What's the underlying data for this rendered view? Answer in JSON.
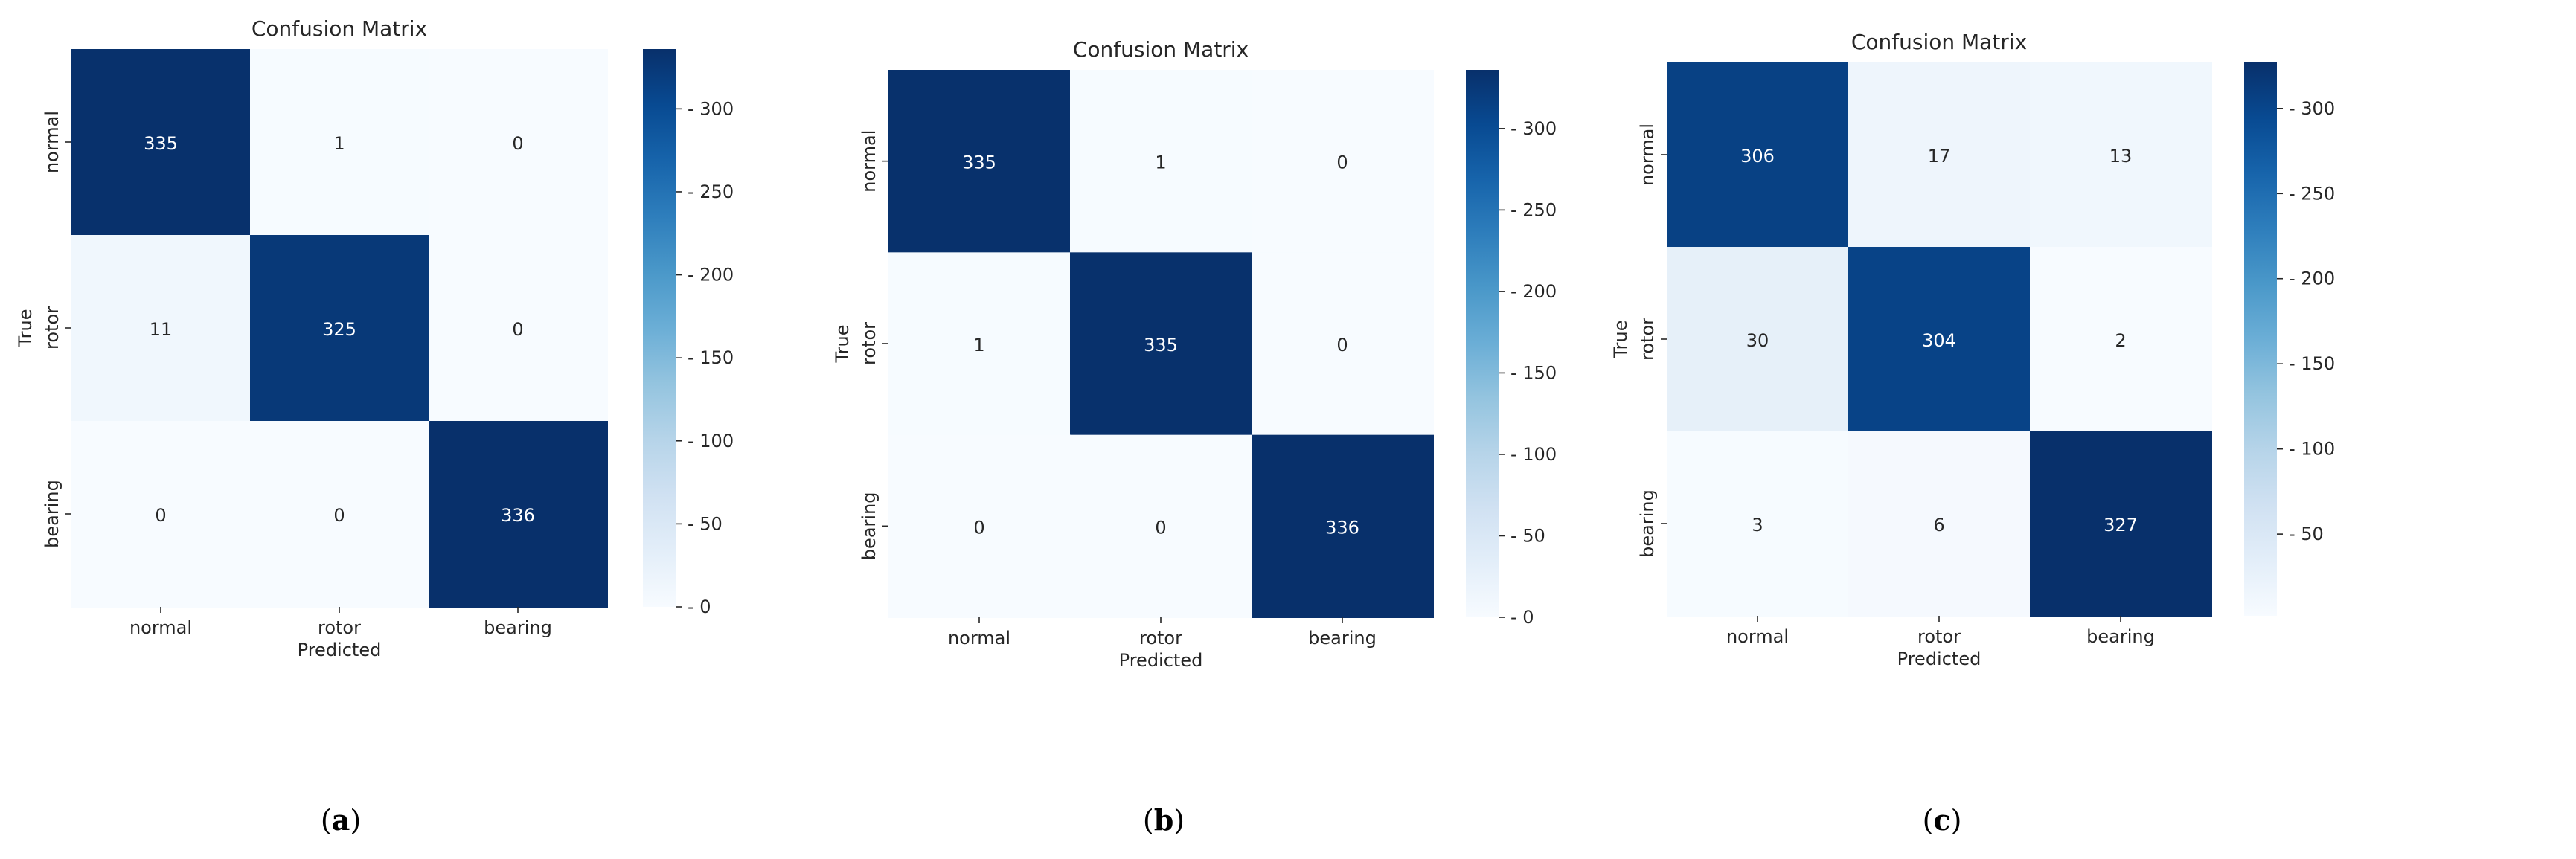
{
  "figure": {
    "panels": [
      {
        "caption_open": "(",
        "caption_letter": "a",
        "caption_close": ")"
      },
      {
        "caption_open": "(",
        "caption_letter": "b",
        "caption_close": ")"
      },
      {
        "caption_open": "(",
        "caption_letter": "c",
        "caption_close": ")"
      }
    ]
  },
  "colors": {
    "cmap_low": "#f7fbff",
    "cmap_high": "#08306b",
    "text_dark_cell": "#ffffff",
    "text_light_cell": "#262626",
    "axis_text": "#262626"
  },
  "chart_data": [
    {
      "type": "heatmap",
      "title": "Confusion Matrix",
      "xlabel": "Predicted",
      "ylabel": "True",
      "x_categories": [
        "normal",
        "rotor",
        "bearing"
      ],
      "y_categories": [
        "normal",
        "rotor",
        "bearing"
      ],
      "values": [
        [
          335,
          1,
          0
        ],
        [
          11,
          325,
          0
        ],
        [
          0,
          0,
          336
        ]
      ],
      "colorbar": {
        "vmin": 0,
        "vmax": 336,
        "ticks": [
          0,
          50,
          100,
          150,
          200,
          250,
          300
        ],
        "cmap": "Blues"
      }
    },
    {
      "type": "heatmap",
      "title": "Confusion Matrix",
      "xlabel": "Predicted",
      "ylabel": "True",
      "x_categories": [
        "normal",
        "rotor",
        "bearing"
      ],
      "y_categories": [
        "normal",
        "rotor",
        "bearing"
      ],
      "values": [
        [
          335,
          1,
          0
        ],
        [
          1,
          335,
          0
        ],
        [
          0,
          0,
          336
        ]
      ],
      "colorbar": {
        "vmin": 0,
        "vmax": 336,
        "ticks": [
          0,
          50,
          100,
          150,
          200,
          250,
          300
        ],
        "cmap": "Blues"
      }
    },
    {
      "type": "heatmap",
      "title": "Confusion Matrix",
      "xlabel": "Predicted",
      "ylabel": "True",
      "x_categories": [
        "normal",
        "rotor",
        "bearing"
      ],
      "y_categories": [
        "normal",
        "rotor",
        "bearing"
      ],
      "values": [
        [
          306,
          17,
          13
        ],
        [
          30,
          304,
          2
        ],
        [
          3,
          6,
          327
        ]
      ],
      "colorbar": {
        "vmin": 2,
        "vmax": 327,
        "ticks": [
          50,
          100,
          150,
          200,
          250,
          300
        ],
        "cmap": "Blues"
      }
    }
  ]
}
